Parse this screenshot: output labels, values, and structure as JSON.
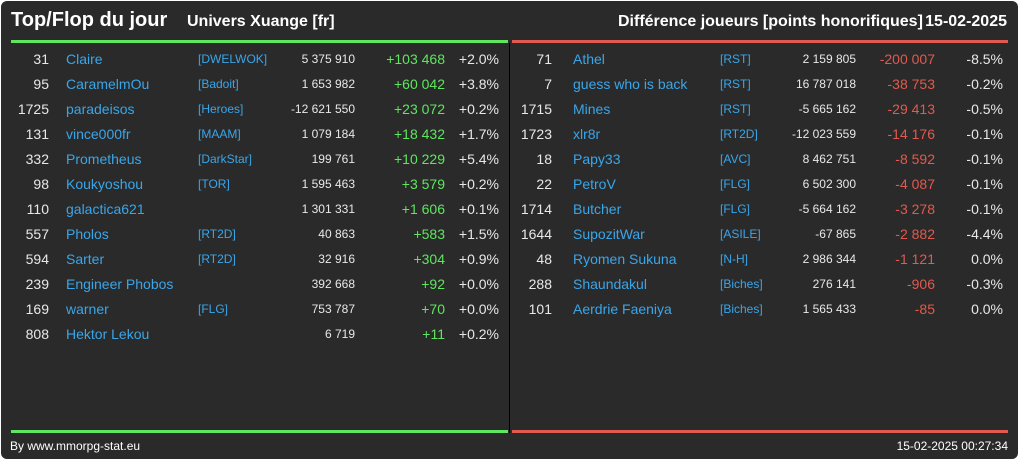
{
  "header": {
    "title": "Top/Flop du jour",
    "universe": "Univers Xuange [fr]",
    "metric": "Différence joueurs [points honorifiques]",
    "date": "15-02-2025"
  },
  "colors": {
    "gain": "#5ee65e",
    "loss": "#e05a4f",
    "link": "#3aa6ea",
    "background": "#2a2a2a"
  },
  "top": [
    {
      "rank": "31",
      "name": "Claire",
      "guild": "[DWELWOK]",
      "points": "5 375 910",
      "delta": "+103 468",
      "pct": "+2.0%"
    },
    {
      "rank": "95",
      "name": "CaramelmOu",
      "guild": "[Badoit]",
      "points": "1 653 982",
      "delta": "+60 042",
      "pct": "+3.8%"
    },
    {
      "rank": "1725",
      "name": "paradeisos",
      "guild": "[Heroes]",
      "points": "-12 621 550",
      "delta": "+23 072",
      "pct": "+0.2%"
    },
    {
      "rank": "131",
      "name": "vince000fr",
      "guild": "[MAAM]",
      "points": "1 079 184",
      "delta": "+18 432",
      "pct": "+1.7%"
    },
    {
      "rank": "332",
      "name": "Prometheus",
      "guild": "[DarkStar]",
      "points": "199 761",
      "delta": "+10 229",
      "pct": "+5.4%"
    },
    {
      "rank": "98",
      "name": "Koukyoshou",
      "guild": "[TOR]",
      "points": "1 595 463",
      "delta": "+3 579",
      "pct": "+0.2%"
    },
    {
      "rank": "110",
      "name": "galactica621",
      "guild": "",
      "points": "1 301 331",
      "delta": "+1 606",
      "pct": "+0.1%"
    },
    {
      "rank": "557",
      "name": "Pholos",
      "guild": "[RT2D]",
      "points": "40 863",
      "delta": "+583",
      "pct": "+1.5%"
    },
    {
      "rank": "594",
      "name": "Sarter",
      "guild": "[RT2D]",
      "points": "32 916",
      "delta": "+304",
      "pct": "+0.9%"
    },
    {
      "rank": "239",
      "name": "Engineer Phobos",
      "guild": "",
      "points": "392 668",
      "delta": "+92",
      "pct": "+0.0%"
    },
    {
      "rank": "169",
      "name": "warner",
      "guild": "[FLG]",
      "points": "753 787",
      "delta": "+70",
      "pct": "+0.0%"
    },
    {
      "rank": "808",
      "name": "Hektor Lekou",
      "guild": "",
      "points": "6 719",
      "delta": "+11",
      "pct": "+0.2%"
    }
  ],
  "flop": [
    {
      "rank": "71",
      "name": "Athel",
      "guild": "[RST]",
      "points": "2 159 805",
      "delta": "-200 007",
      "pct": "-8.5%"
    },
    {
      "rank": "7",
      "name": "guess who is back",
      "guild": "[RST]",
      "points": "16 787 018",
      "delta": "-38 753",
      "pct": "-0.2%"
    },
    {
      "rank": "1715",
      "name": "Mines",
      "guild": "[RST]",
      "points": "-5 665 162",
      "delta": "-29 413",
      "pct": "-0.5%"
    },
    {
      "rank": "1723",
      "name": "xlr8r",
      "guild": "[RT2D]",
      "points": "-12 023 559",
      "delta": "-14 176",
      "pct": "-0.1%"
    },
    {
      "rank": "18",
      "name": "Papy33",
      "guild": "[AVC]",
      "points": "8 462 751",
      "delta": "-8 592",
      "pct": "-0.1%"
    },
    {
      "rank": "22",
      "name": "PetroV",
      "guild": "[FLG]",
      "points": "6 502 300",
      "delta": "-4 087",
      "pct": "-0.1%"
    },
    {
      "rank": "1714",
      "name": "Butcher",
      "guild": "[FLG]",
      "points": "-5 664 162",
      "delta": "-3 278",
      "pct": "-0.1%"
    },
    {
      "rank": "1644",
      "name": "SupozitWar",
      "guild": "[ASILE]",
      "points": "-67 865",
      "delta": "-2 882",
      "pct": "-4.4%"
    },
    {
      "rank": "48",
      "name": "Ryomen Sukuna",
      "guild": "[N-H]",
      "points": "2 986 344",
      "delta": "-1 121",
      "pct": "0.0%"
    },
    {
      "rank": "288",
      "name": "Shaundakul",
      "guild": "[Biches]",
      "points": "276 141",
      "delta": "-906",
      "pct": "-0.3%"
    },
    {
      "rank": "101",
      "name": "Aerdrie Faeniya",
      "guild": "[Biches]",
      "points": "1 565 433",
      "delta": "-85",
      "pct": "0.0%"
    }
  ],
  "footer": {
    "credit": "By www.mmorpg-stat.eu",
    "timestamp": "15-02-2025 00:27:34"
  }
}
